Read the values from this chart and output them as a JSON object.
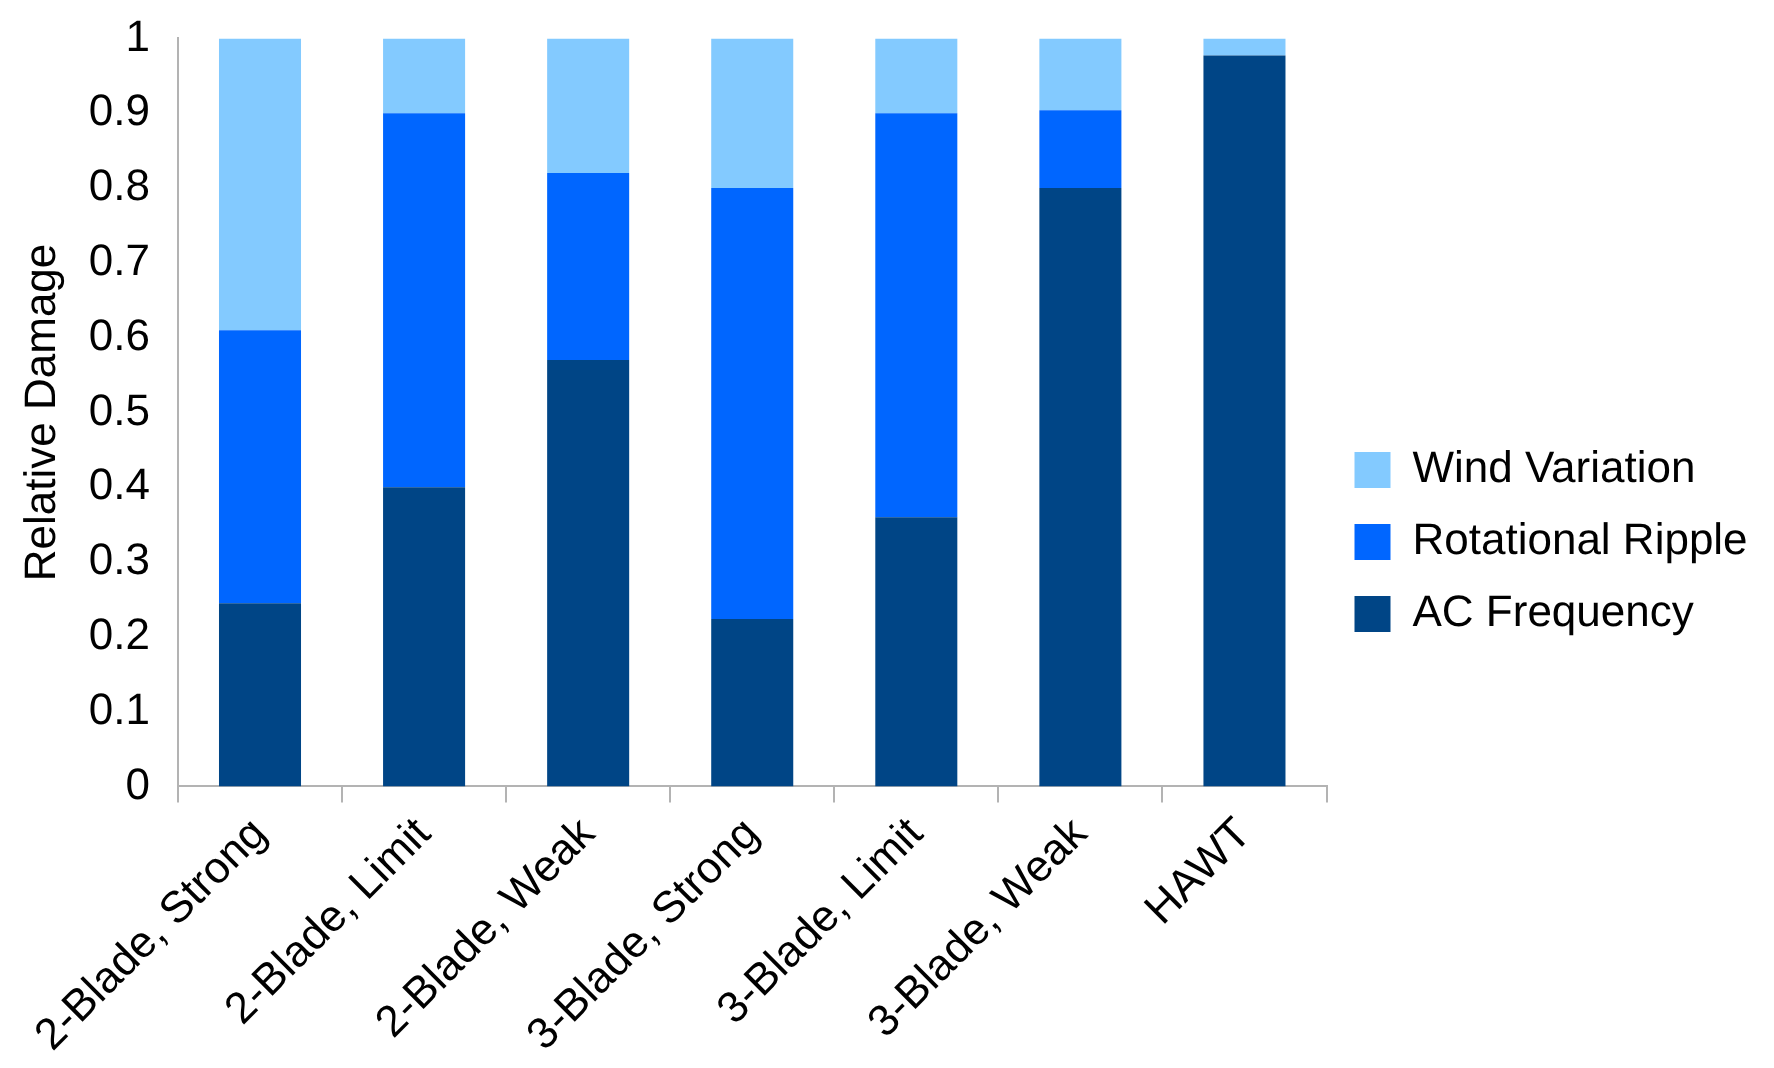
{
  "chart_data": {
    "type": "bar",
    "stacked": true,
    "ylabel": "Relative Damage",
    "categories": [
      "2-Blade, Strong",
      "2-Blade, Limit",
      "2-Blade, Weak",
      "3-Blade, Strong",
      "3-Blade, Limit",
      "3-Blade, Weak",
      "HAWT"
    ],
    "series": [
      {
        "name": "AC Frequency",
        "color": "#004586",
        "values": [
          0.245,
          0.4,
          0.57,
          0.224,
          0.36,
          0.8,
          0.977
        ]
      },
      {
        "name": "Rotational Ripple",
        "color": "#0066ff",
        "values": [
          0.365,
          0.5,
          0.25,
          0.576,
          0.54,
          0.104,
          0
        ]
      },
      {
        "name": "Wind Variation",
        "color": "#83caff",
        "values": [
          0.39,
          0.1,
          0.18,
          0.2,
          0.1,
          0.096,
          0.023
        ]
      }
    ],
    "ylim": [
      0,
      1
    ],
    "yticks": [
      0,
      0.1,
      0.2,
      0.3,
      0.4,
      0.5,
      0.6,
      0.7,
      0.8,
      0.9,
      1
    ],
    "grid": false,
    "legend": "right"
  }
}
